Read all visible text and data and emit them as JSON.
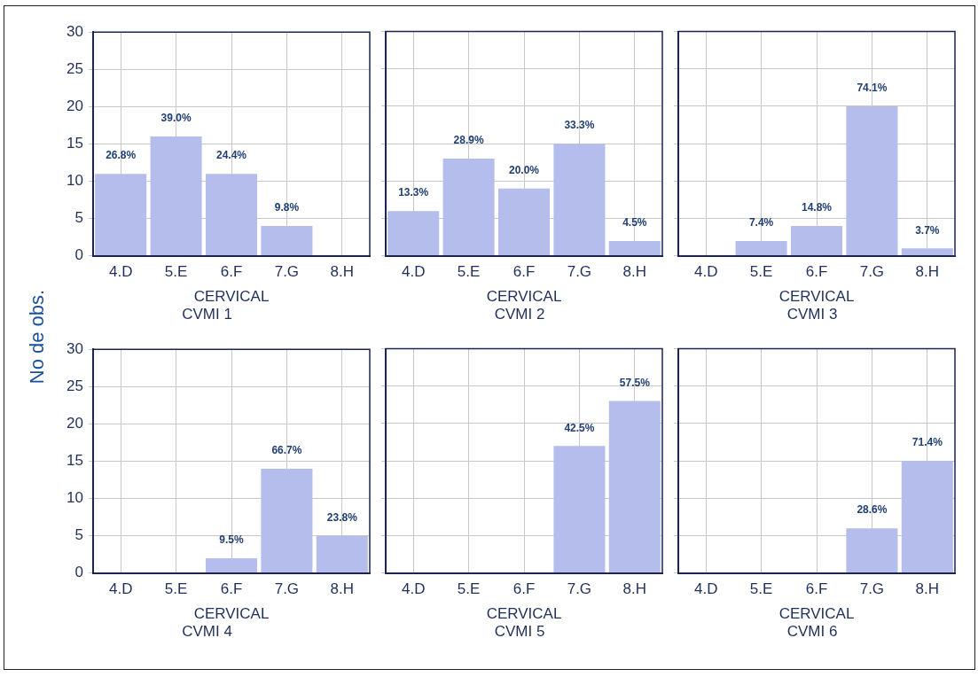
{
  "chart_data": [
    {
      "type": "bar",
      "title": "CVMI 1",
      "xlabel": "CERVICAL",
      "ylabel": "No de obs.",
      "categories": [
        "4.D",
        "5.E",
        "6.F",
        "7.G",
        "8.H"
      ],
      "values": [
        11,
        16,
        11,
        4,
        0
      ],
      "annotations": [
        {
          "text": "26.8%",
          "x": "4.D",
          "y": 11
        },
        {
          "text": "39.0%",
          "x": "5.E",
          "y": 16
        },
        {
          "text": "24.4%",
          "x": "6.F",
          "y": 11
        },
        {
          "text": "9.8%",
          "x": "7.G",
          "y": 4
        }
      ],
      "color": "#b4bdeb",
      "ylim": [
        0,
        30
      ],
      "yticks": [
        0,
        5,
        10,
        15,
        20,
        25,
        30
      ],
      "grid": true
    },
    {
      "type": "bar",
      "title": "CVMI 2",
      "xlabel": "CERVICAL",
      "categories": [
        "4.D",
        "5.E",
        "6.F",
        "7.G",
        "8.H"
      ],
      "values": [
        6,
        13,
        9,
        15,
        2
      ],
      "annotations": [
        {
          "text": "13.3%",
          "x": "4.D",
          "y": 6
        },
        {
          "text": "28.9%",
          "x": "5.E",
          "y": 13
        },
        {
          "text": "20.0%",
          "x": "6.F",
          "y": 9
        },
        {
          "text": "33.3%",
          "x": "7.G",
          "y": 15
        },
        {
          "text": "4.5%",
          "x": "8.H",
          "y": 2
        }
      ],
      "color": "#b4bdeb",
      "ylim": [
        0,
        30
      ],
      "yticks": [
        0,
        5,
        10,
        15,
        20,
        25,
        30
      ],
      "grid": true,
      "tick_labels": "x"
    },
    {
      "type": "bar",
      "title": "CVMI 3",
      "xlabel": "CERVICAL",
      "categories": [
        "4.D",
        "5.E",
        "6.F",
        "7.G",
        "8.H"
      ],
      "values": [
        0,
        2,
        4,
        20,
        1
      ],
      "annotations": [
        {
          "text": "7.4%",
          "x": "5.E",
          "y": 2
        },
        {
          "text": "14.8%",
          "x": "6.F",
          "y": 4
        },
        {
          "text": "74.1%",
          "x": "7.G",
          "y": 20
        },
        {
          "text": "3.7%",
          "x": "8.H",
          "y": 1
        }
      ],
      "color": "#b4bdeb",
      "ylim": [
        0,
        30
      ],
      "yticks": [
        0,
        5,
        10,
        15,
        20,
        25,
        30
      ],
      "grid": true,
      "tick_labels": "x"
    },
    {
      "type": "bar",
      "title": "CVMI 4",
      "xlabel": "CERVICAL",
      "categories": [
        "4.D",
        "5.E",
        "6.F",
        "7.G",
        "8.H"
      ],
      "values": [
        0,
        0,
        2,
        14,
        5
      ],
      "annotations": [
        {
          "text": "9.5%",
          "x": "6.F",
          "y": 2
        },
        {
          "text": "66.7%",
          "x": "7.G",
          "y": 14
        },
        {
          "text": "23.8%",
          "x": "8.H",
          "y": 5
        }
      ],
      "color": "#b4bdeb",
      "ylim": [
        0,
        30
      ],
      "yticks": [
        0,
        5,
        10,
        15,
        20,
        25,
        30
      ],
      "grid": true
    },
    {
      "type": "bar",
      "title": "CVMI 5",
      "xlabel": "CERVICAL",
      "categories": [
        "4.D",
        "5.E",
        "6.F",
        "7.G",
        "8.H"
      ],
      "values": [
        0,
        0,
        0,
        17,
        23
      ],
      "annotations": [
        {
          "text": "42.5%",
          "x": "7.G",
          "y": 17
        },
        {
          "text": "57.5%",
          "x": "8.H",
          "y": 23
        }
      ],
      "color": "#b4bdeb",
      "ylim": [
        0,
        30
      ],
      "yticks": [
        0,
        5,
        10,
        15,
        20,
        25,
        30
      ],
      "grid": true,
      "tick_labels": "x"
    },
    {
      "type": "bar",
      "title": "CVMI 6",
      "xlabel": "CERVICAL",
      "categories": [
        "4.D",
        "5.E",
        "6.F",
        "7.G",
        "8.H"
      ],
      "values": [
        0,
        0,
        0,
        6,
        15
      ],
      "annotations": [
        {
          "text": "28.6%",
          "x": "7.G",
          "y": 6
        },
        {
          "text": "71.4%",
          "x": "8.H",
          "y": 15
        }
      ],
      "color": "#b4bdeb",
      "ylim": [
        0,
        30
      ],
      "yticks": [
        0,
        5,
        10,
        15,
        20,
        25,
        30
      ],
      "grid": true,
      "tick_labels": "x"
    }
  ]
}
